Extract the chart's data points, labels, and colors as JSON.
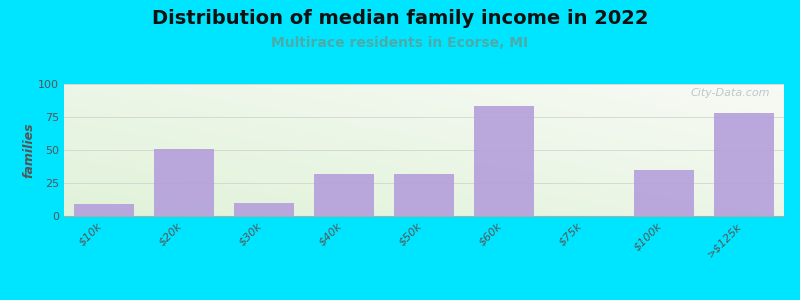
{
  "title": "Distribution of median family income in 2022",
  "subtitle": "Multirace residents in Ecorse, MI",
  "categories": [
    "$10k",
    "$20k",
    "$30k",
    "$40k",
    "$50k",
    "$60k",
    "$75k",
    "$100k",
    ">$125k"
  ],
  "values": [
    9,
    51,
    10,
    32,
    32,
    83,
    0,
    35,
    78
  ],
  "bar_color": "#b39ddb",
  "bar_alpha": 0.88,
  "ylabel": "families",
  "ylim": [
    0,
    100
  ],
  "yticks": [
    0,
    25,
    50,
    75,
    100
  ],
  "background_color": "#00e5ff",
  "title_fontsize": 14,
  "subtitle_fontsize": 10,
  "subtitle_color": "#4aacaa",
  "watermark": "City-Data.com",
  "watermark_color": "#aab8c0",
  "grid_color": "#cccccc",
  "tick_label_color": "#555555",
  "ylabel_color": "#555555"
}
